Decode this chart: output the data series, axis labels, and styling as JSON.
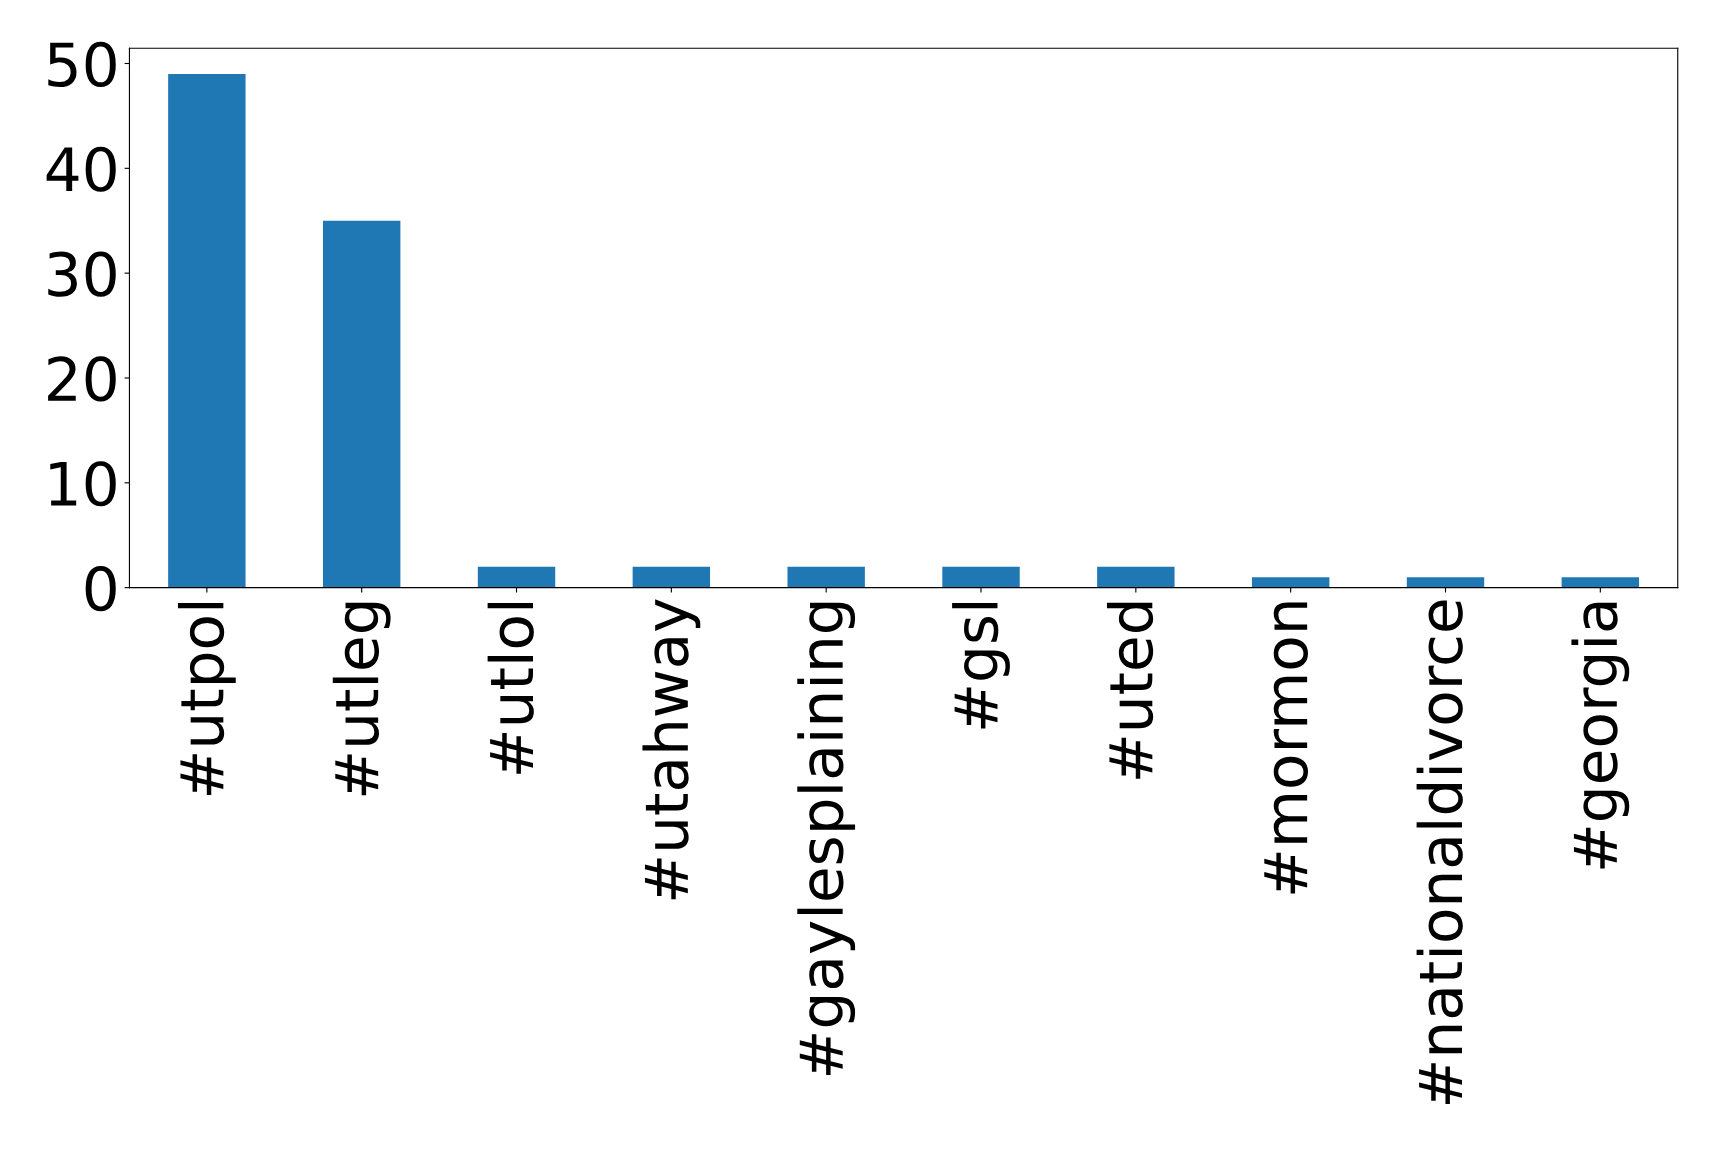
{
  "chart_data": {
    "type": "bar",
    "categories": [
      "#utpol",
      "#utleg",
      "#utlol",
      "#utahway",
      "#gaylesplaining",
      "#gsl",
      "#uted",
      "#mormon",
      "#nationaldivorce",
      "#georgia"
    ],
    "values": [
      49,
      35,
      2,
      2,
      2,
      2,
      2,
      1,
      1,
      1
    ],
    "color": "#1f77b4",
    "ylim": [
      0,
      51.45
    ],
    "yticks": [
      0,
      10,
      20,
      30,
      40,
      50
    ],
    "grid": false
  }
}
